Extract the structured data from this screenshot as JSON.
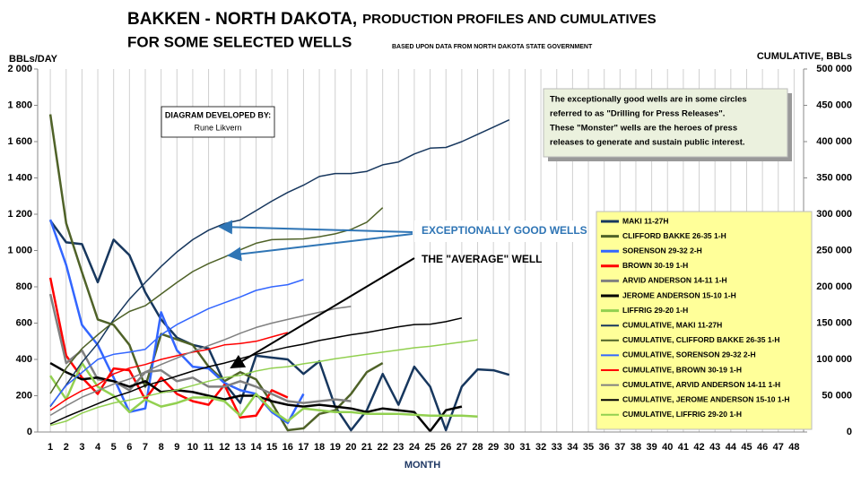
{
  "chart_data": {
    "type": "line",
    "title": [
      "BAKKEN - NORTH DAKOTA,",
      "PRODUCTION PROFILES AND CUMULATIVES",
      "FOR SOME SELECTED WELLS"
    ],
    "subtitle": "BASED UPON DATA FROM NORTH DAKOTA STATE GOVERNMENT",
    "y_label": "BBLs/DAY",
    "y2_label": "CUMULATIVE, BBLs",
    "x_label": "MONTH",
    "credit": [
      "DIAGRAM DEVELOPED BY:",
      "Rune Likvern"
    ],
    "note": [
      "The exceptionally good wells are in some circles",
      "referred to as \"Drilling for Press Releases\".",
      "These \"Monster\" wells are the heroes of press",
      "releases to generate and sustain public interest."
    ],
    "arrow_labels": [
      "EXCEPTIONALLY GOOD WELLS",
      "THE \"AVERAGE\" WELL"
    ],
    "grid": "x",
    "legend": "right",
    "x": [
      1,
      2,
      3,
      4,
      5,
      6,
      7,
      8,
      9,
      10,
      11,
      12,
      13,
      14,
      15,
      16,
      17,
      18,
      19,
      20,
      21,
      22,
      23,
      24,
      25,
      26,
      27,
      28,
      29,
      30
    ],
    "xlim": [
      0.2,
      48.6
    ],
    "xticks": [
      1,
      2,
      3,
      4,
      5,
      6,
      7,
      8,
      9,
      10,
      11,
      12,
      13,
      14,
      15,
      16,
      17,
      18,
      19,
      20,
      21,
      22,
      23,
      24,
      25,
      26,
      27,
      28,
      29,
      30,
      31,
      32,
      33,
      34,
      35,
      36,
      37,
      38,
      39,
      40,
      41,
      42,
      43,
      44,
      45,
      46,
      47,
      48
    ],
    "ylim": [
      0,
      2000
    ],
    "yticks": [
      0,
      200,
      400,
      600,
      800,
      {
        "value": 1000,
        "label": "1 000"
      },
      {
        "value": 1200,
        "label": "1 200"
      },
      {
        "value": 1400,
        "label": "1 400"
      },
      {
        "value": 1600,
        "label": "1 600"
      },
      {
        "value": 1800,
        "label": "1 800"
      },
      {
        "value": 2000,
        "label": "2 000"
      }
    ],
    "y2lim": [
      0,
      500000
    ],
    "y2ticks": [
      0,
      {
        "value": 50000,
        "label": "50 000"
      },
      {
        "value": 100000,
        "label": "100 000"
      },
      {
        "value": 150000,
        "label": "150 000"
      },
      {
        "value": 200000,
        "label": "200 000"
      },
      {
        "value": 250000,
        "label": "250 000"
      },
      {
        "value": 300000,
        "label": "300 000"
      },
      {
        "value": 350000,
        "label": "350 000"
      },
      {
        "value": 400000,
        "label": "400 000"
      },
      {
        "value": 450000,
        "label": "450 000"
      },
      {
        "value": 500000,
        "label": "500 000"
      }
    ],
    "series": [
      {
        "name": "MAKI 11-27H",
        "color": "#17375e",
        "line_width": 2.5,
        "values": [
          1165,
          1045,
          1035,
          825,
          1060,
          975,
          770,
          620,
          520,
          480,
          460,
          270,
          160,
          420,
          410,
          400,
          320,
          390,
          140,
          10,
          120,
          320,
          150,
          360,
          250,
          10,
          250,
          345,
          340,
          315
        ]
      },
      {
        "name": "CLIFFORD BAKKE 26-35 1-H",
        "color": "#4f6228",
        "line_width": 2.5,
        "values": [
          1750,
          1150,
          880,
          620,
          590,
          480,
          250,
          540,
          510,
          480,
          360,
          280,
          330,
          290,
          160,
          10,
          20,
          100,
          120,
          210,
          330,
          380,
          null,
          null,
          null,
          null,
          null,
          null,
          null,
          null
        ]
      },
      {
        "name": "SORENSON 29-32 2-H",
        "color": "#3366ff",
        "line_width": 2.5,
        "values": [
          1170,
          920,
          590,
          480,
          300,
          110,
          130,
          660,
          450,
          360,
          350,
          270,
          230,
          210,
          110,
          50,
          210,
          null,
          null,
          null,
          null,
          null,
          null,
          null,
          null,
          null,
          null,
          null,
          null,
          null
        ]
      },
      {
        "name": "BROWN 30-19 1-H",
        "color": "#ff0000",
        "line_width": 2.5,
        "values": [
          850,
          420,
          300,
          210,
          350,
          340,
          180,
          300,
          210,
          170,
          150,
          260,
          80,
          90,
          230,
          190,
          null,
          null,
          null,
          null,
          null,
          null,
          null,
          null,
          null,
          null,
          null,
          null,
          null,
          null
        ]
      },
      {
        "name": "ARVID ANDERSON 14-11 1-H",
        "color": "#808080",
        "line_width": 2.5,
        "values": [
          760,
          380,
          450,
          290,
          280,
          230,
          330,
          340,
          280,
          300,
          250,
          250,
          280,
          250,
          210,
          170,
          160,
          170,
          180,
          170,
          null,
          null,
          null,
          null,
          null,
          null,
          null,
          null,
          null,
          null
        ]
      },
      {
        "name": "JEROME ANDERSON 15-10 1-H",
        "color": "#000000",
        "line_width": 2.5,
        "values": [
          380,
          330,
          290,
          300,
          280,
          250,
          280,
          220,
          230,
          220,
          200,
          180,
          200,
          200,
          170,
          150,
          140,
          150,
          140,
          130,
          110,
          130,
          120,
          110,
          5,
          120,
          140,
          null,
          null,
          null
        ]
      },
      {
        "name": "LIFFRIG 29-20 1-H",
        "color": "#92d050",
        "line_width": 2.5,
        "values": [
          310,
          180,
          380,
          250,
          200,
          110,
          180,
          140,
          160,
          190,
          190,
          170,
          90,
          210,
          120,
          60,
          130,
          120,
          110,
          110,
          100,
          100,
          100,
          95,
          90,
          90,
          90,
          85,
          null,
          null
        ]
      },
      {
        "name": "CUMULATIVE, MAKI 11-27H",
        "color": "#17375e",
        "line_width": 1.5,
        "axis": "y2",
        "values": [
          35000,
          65000,
          96000,
          122000,
          155000,
          183000,
          206000,
          228000,
          248000,
          265000,
          278000,
          287000,
          292000,
          305000,
          318000,
          330000,
          340000,
          352000,
          356000,
          356000,
          359000,
          368000,
          372000,
          383000,
          391000,
          392000,
          400000,
          410000,
          420000,
          430000
        ]
      },
      {
        "name": "CUMULATIVE, CLIFFORD BAKKE 26-35 1-H",
        "color": "#4f6228",
        "line_width": 1.5,
        "axis": "y2",
        "values": [
          53000,
          88000,
          115000,
          134000,
          152000,
          166000,
          174000,
          190000,
          206000,
          221000,
          232000,
          241000,
          251000,
          260000,
          265000,
          265500,
          266000,
          269000,
          273000,
          279000,
          289000,
          309000,
          null,
          null,
          null,
          null,
          null,
          null,
          null,
          null
        ]
      },
      {
        "name": "CUMULATIVE, SORENSON 29-32 2-H",
        "color": "#3366ff",
        "line_width": 1.5,
        "axis": "y2",
        "values": [
          36000,
          64000,
          82000,
          100000,
          107000,
          110000,
          114000,
          134000,
          148000,
          159000,
          170000,
          178000,
          186000,
          195000,
          200000,
          203000,
          210000,
          null,
          null,
          null,
          null,
          null,
          null,
          null,
          null,
          null,
          null,
          null,
          null,
          null
        ]
      },
      {
        "name": "CUMULATIVE, BROWN 30-19 1-H",
        "color": "#ff0000",
        "line_width": 1.5,
        "axis": "y2",
        "values": [
          30000,
          45000,
          57000,
          65000,
          80000,
          88000,
          93000,
          100000,
          105000,
          110000,
          114000,
          120000,
          122000,
          125000,
          131000,
          137000,
          null,
          null,
          null,
          null,
          null,
          null,
          null,
          null,
          null,
          null,
          null,
          null,
          null,
          null
        ]
      },
      {
        "name": "CUMULATIVE, ARVID ANDERSON 14-11 1-H",
        "color": "#808080",
        "line_width": 1.5,
        "axis": "y2",
        "values": [
          23000,
          36000,
          48000,
          57000,
          66000,
          73000,
          83000,
          93000,
          102000,
          111000,
          119000,
          127000,
          136000,
          144000,
          150000,
          155000,
          160000,
          165000,
          170000,
          173000,
          null,
          null,
          null,
          null,
          null,
          null,
          null,
          null,
          null,
          null
        ]
      },
      {
        "name": "CUMULATIVE, JEROME ANDERSON 15-10 1-H",
        "color": "#000000",
        "line_width": 1.5,
        "axis": "y2",
        "values": [
          11000,
          21000,
          30000,
          39000,
          48000,
          55000,
          64000,
          70000,
          77000,
          84000,
          90000,
          95000,
          101000,
          107000,
          112000,
          117000,
          121000,
          126000,
          130000,
          134000,
          137000,
          141000,
          145000,
          148000,
          148500,
          152000,
          157000,
          null,
          null,
          null
        ]
      },
      {
        "name": "CUMULATIVE, LIFFRIG 29-20 1-H",
        "color": "#92d050",
        "line_width": 1.5,
        "axis": "y2",
        "values": [
          9000,
          15000,
          26000,
          34000,
          40000,
          44000,
          49000,
          54000,
          58000,
          64000,
          70000,
          75000,
          78000,
          84000,
          88000,
          90000,
          94000,
          97000,
          101000,
          104000,
          107000,
          110000,
          113000,
          116000,
          118000,
          121000,
          124000,
          127000,
          null,
          null
        ]
      }
    ]
  }
}
